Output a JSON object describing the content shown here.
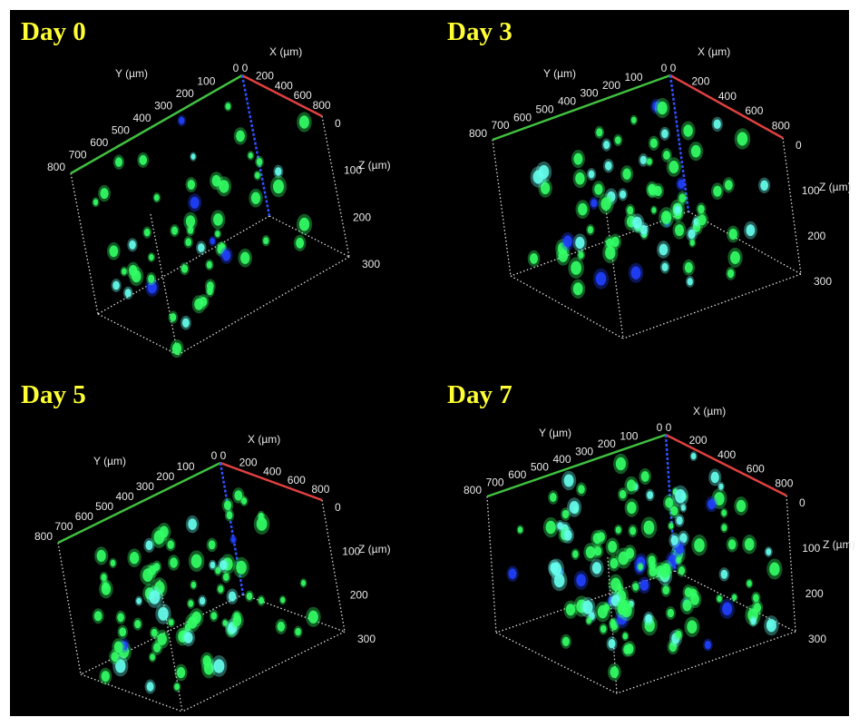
{
  "panels": [
    {
      "id": "day0",
      "label": "Day 0"
    },
    {
      "id": "day3",
      "label": "Day 3"
    },
    {
      "id": "day5",
      "label": "Day 5"
    },
    {
      "id": "day7",
      "label": "Day 7"
    }
  ],
  "axes": {
    "x_label": "X (µm)",
    "y_label": "Y (µm)",
    "z_label": "Z (µm)",
    "origin_label": "0 0",
    "x_ticks": [
      "200",
      "400",
      "600",
      "800"
    ],
    "y_ticks": [
      "100",
      "200",
      "300",
      "400",
      "500",
      "600",
      "700",
      "800"
    ],
    "z_ticks": [
      "0",
      "100",
      "200",
      "300"
    ]
  },
  "colors": {
    "background": "#000000",
    "label": "#ffff33",
    "x_axis": "#e04040",
    "y_axis": "#40c040",
    "z_axis": "#3050ff",
    "cell_green": "#33ff66",
    "cell_cyan": "#66ffee",
    "cell_blue": "#2040ff"
  }
}
